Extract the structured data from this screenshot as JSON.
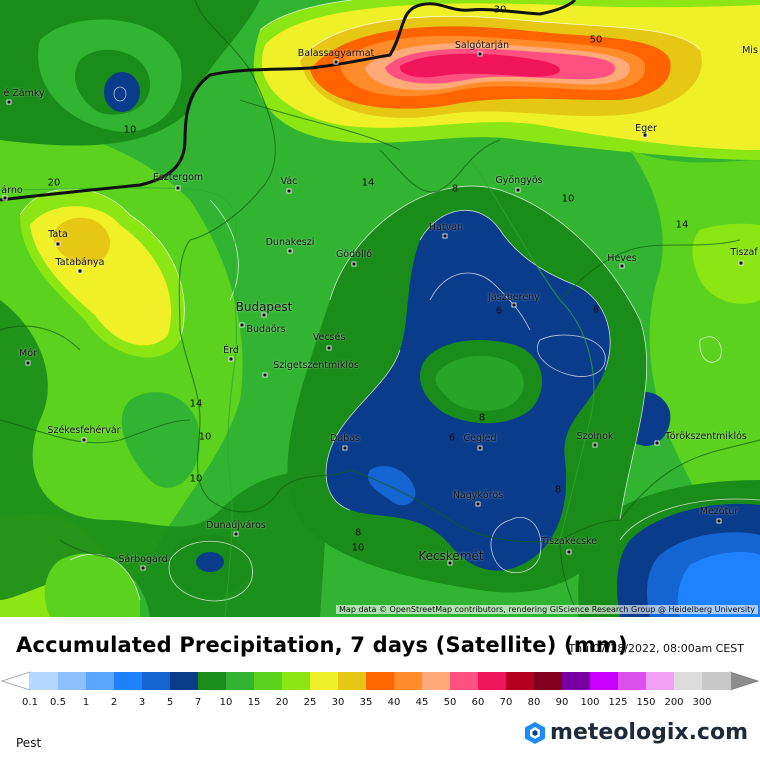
{
  "title": "Accumulated Precipitation, 7 days (Satellite) (mm)",
  "timestamp": "Thu 07/28/2022, 08:00am CEST",
  "region": "Pest",
  "brand": "meteologix.com",
  "attribution": "Map data © OpenStreetMap contributors, rendering GIScience Research Group @ Heidelberg University",
  "cities": [
    {
      "name": "Balassagyarmat"
    },
    {
      "name": "Salgótarján"
    },
    {
      "name": "Eger"
    },
    {
      "name": "Gyöngyös"
    },
    {
      "name": "Esztergom"
    },
    {
      "name": "Vác"
    },
    {
      "name": "Hatvan"
    },
    {
      "name": "Dunakeszi"
    },
    {
      "name": "Gödöllő"
    },
    {
      "name": "Heves"
    },
    {
      "name": "Budapest"
    },
    {
      "name": "Budaörs"
    },
    {
      "name": "Jászberény"
    },
    {
      "name": "Tata"
    },
    {
      "name": "Tatabánya"
    },
    {
      "name": "Mór"
    },
    {
      "name": "Érd"
    },
    {
      "name": "Vecsés"
    },
    {
      "name": "Szigetszentmiklós"
    },
    {
      "name": "Székesfehérvár"
    },
    {
      "name": "Dabas"
    },
    {
      "name": "Cegléd"
    },
    {
      "name": "Szolnok"
    },
    {
      "name": "Törökszentmiklós"
    },
    {
      "name": "Nagykőrös"
    },
    {
      "name": "Dunaújváros"
    },
    {
      "name": "Mezőtúr"
    },
    {
      "name": "Tiszakécske"
    },
    {
      "name": "Sárbogárd"
    },
    {
      "name": "Kecskemét"
    },
    {
      "name": "Tiszaf"
    },
    {
      "name": "Mis"
    },
    {
      "name": "é Zámky"
    },
    {
      "name": "árno"
    }
  ],
  "contour_labels": [
    "30",
    "50",
    "10",
    "20",
    "14",
    "8",
    "10",
    "14",
    "6",
    "8",
    "8",
    "6",
    "14",
    "10",
    "10",
    "8",
    "10",
    "8"
  ],
  "legend": {
    "labels": [
      "0.1",
      "0.5",
      "1",
      "2",
      "3",
      "5",
      "7",
      "10",
      "15",
      "20",
      "25",
      "30",
      "35",
      "40",
      "45",
      "50",
      "60",
      "70",
      "80",
      "90",
      "100",
      "125",
      "150",
      "200",
      "300"
    ],
    "colors": [
      "#b4d7ff",
      "#8cc0ff",
      "#5aa5ff",
      "#1e82ff",
      "#1464d2",
      "#0a3c8c",
      "#198c19",
      "#32b432",
      "#5ad21e",
      "#8ce614",
      "#f0f028",
      "#e6c814",
      "#ff6400",
      "#ff8c28",
      "#ffaa78",
      "#ff5082",
      "#f0145a",
      "#b4001e",
      "#82001e",
      "#7800a0",
      "#c800ff",
      "#dc50f0",
      "#f0a0f5",
      "#dcdcdc",
      "#c8c8c8"
    ]
  }
}
